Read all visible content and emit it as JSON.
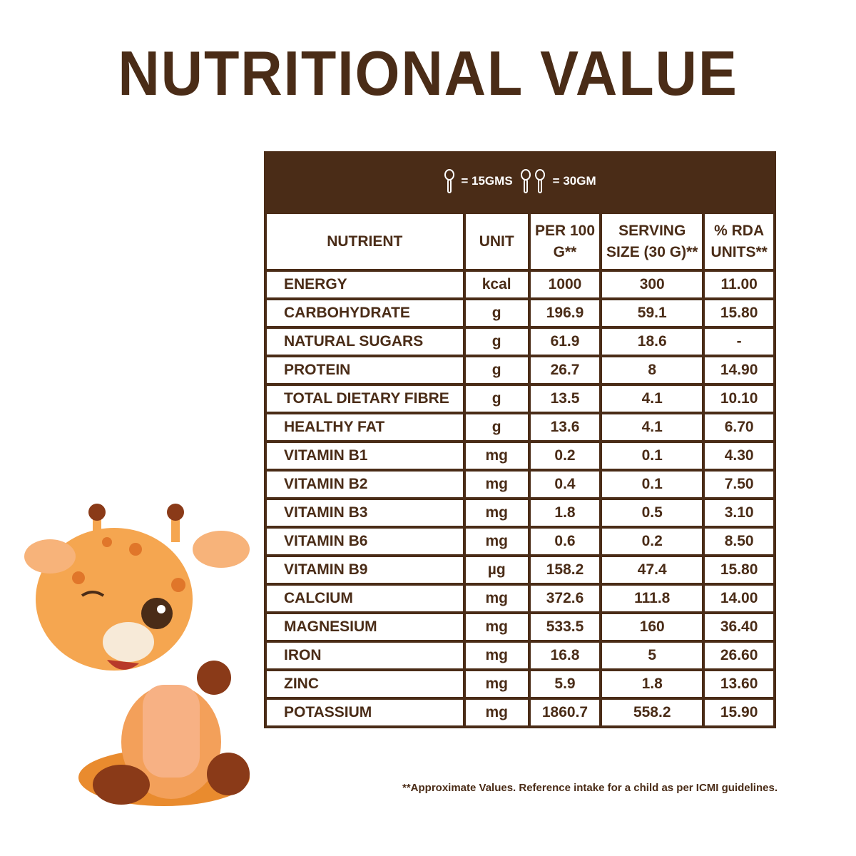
{
  "header": {
    "title": "NUTRITIONAL VALUE"
  },
  "serving_note": {
    "one_scoop": "= 15GMS",
    "two_scoops": "= 30GM"
  },
  "table": {
    "columns": [
      "NUTRIENT",
      "UNIT",
      "PER 100 G**",
      "SERVING SIZE (30 G)**",
      "% RDA UNITS**"
    ],
    "rows": [
      [
        "ENERGY",
        "kcal",
        "1000",
        "300",
        "11.00"
      ],
      [
        "CARBOHYDRATE",
        "g",
        "196.9",
        "59.1",
        "15.80"
      ],
      [
        "NATURAL SUGARS",
        "g",
        "61.9",
        "18.6",
        "-"
      ],
      [
        "PROTEIN",
        "g",
        "26.7",
        "8",
        "14.90"
      ],
      [
        "TOTAL DIETARY FIBRE",
        "g",
        "13.5",
        "4.1",
        "10.10"
      ],
      [
        "HEALTHY FAT",
        "g",
        "13.6",
        "4.1",
        "6.70"
      ],
      [
        "VITAMIN B1",
        "mg",
        "0.2",
        "0.1",
        "4.30"
      ],
      [
        "VITAMIN B2",
        "mg",
        "0.4",
        "0.1",
        "7.50"
      ],
      [
        "VITAMIN B3",
        "mg",
        "1.8",
        "0.5",
        "3.10"
      ],
      [
        "VITAMIN B6",
        "mg",
        "0.6",
        "0.2",
        "8.50"
      ],
      [
        "VITAMIN B9",
        "µg",
        "158.2",
        "47.4",
        "15.80"
      ],
      [
        "CALCIUM",
        "mg",
        "372.6",
        "111.8",
        "14.00"
      ],
      [
        "MAGNESIUM",
        "mg",
        "533.5",
        "160",
        "36.40"
      ],
      [
        "IRON",
        "mg",
        "16.8",
        "5",
        "26.60"
      ],
      [
        "ZINC",
        "mg",
        "5.9",
        "1.8",
        "13.60"
      ],
      [
        "POTASSIUM",
        "mg",
        "1860.7",
        "558.2",
        "15.90"
      ]
    ]
  },
  "footnote": "**Approximate Values. Reference intake for a child as per ICMI guidelines."
}
